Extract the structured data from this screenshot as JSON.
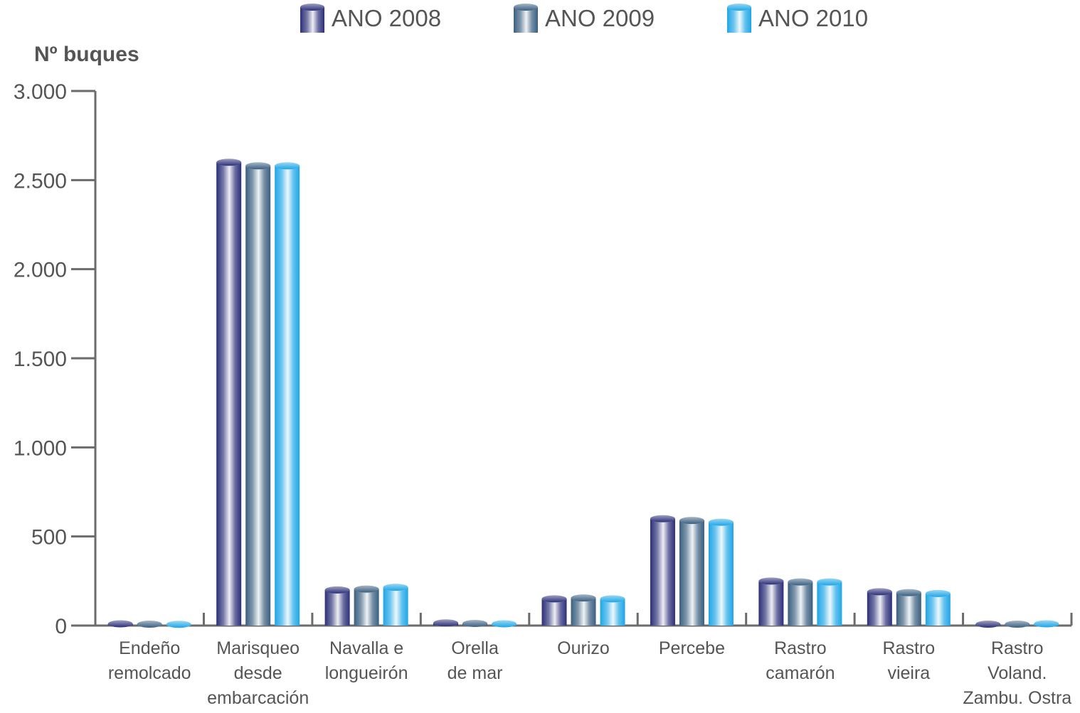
{
  "chart_data": {
    "type": "bar",
    "title": "",
    "ylabel": "Nº buques",
    "xlabel": "",
    "ylim": [
      0,
      3000
    ],
    "yticks": [
      0,
      500,
      1000,
      1500,
      2000,
      2500,
      3000
    ],
    "ytick_labels": [
      "0",
      "500",
      "1.000",
      "1.500",
      "2.000",
      "2.500",
      "3.000"
    ],
    "categories": [
      [
        "Endeño",
        "remolcado"
      ],
      [
        "Marisqueo",
        "desde",
        "embarcación"
      ],
      [
        "Navalla e",
        "longueirón"
      ],
      [
        "Orella",
        "de mar"
      ],
      [
        "Ourizo"
      ],
      [
        "Percebe"
      ],
      [
        "Rastro",
        "camarón"
      ],
      [
        "Rastro",
        "vieira"
      ],
      [
        "Rastro",
        "Voland.",
        "Zambu. Ostra"
      ]
    ],
    "series": [
      {
        "name": "ANO 2008",
        "color": "#2b2f78",
        "values": [
          10,
          2600,
          200,
          15,
          150,
          600,
          250,
          190,
          8
        ]
      },
      {
        "name": "ANO 2009",
        "color": "#3a5f80",
        "values": [
          8,
          2580,
          205,
          12,
          155,
          590,
          245,
          185,
          8
        ]
      },
      {
        "name": "ANO 2010",
        "color": "#1ea6e6",
        "values": [
          7,
          2580,
          215,
          10,
          150,
          580,
          245,
          180,
          10
        ]
      }
    ],
    "legend_position": "top",
    "grid": false
  }
}
